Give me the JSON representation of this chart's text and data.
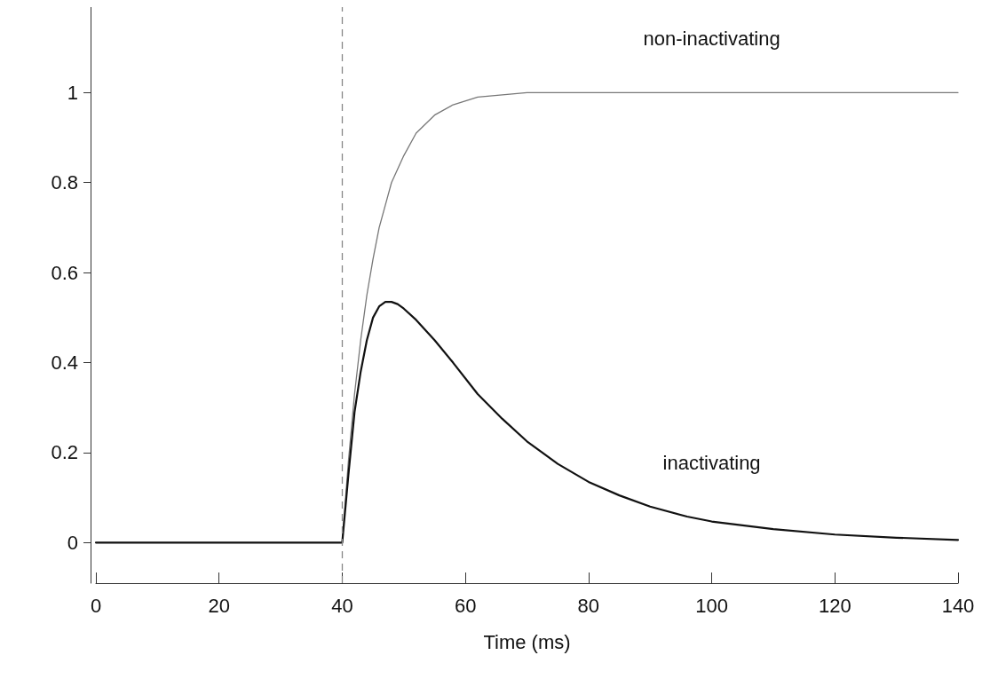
{
  "chart_data": {
    "type": "line",
    "xlabel": "Time (ms)",
    "xlim": [
      0,
      140
    ],
    "xticks": [
      0,
      20,
      40,
      60,
      80,
      100,
      120,
      140
    ],
    "ylim": [
      -0.09,
      1.19
    ],
    "yticks": [
      0,
      0.2,
      0.4,
      0.6,
      0.8,
      1
    ],
    "grid": false,
    "marker": "none",
    "series": [
      {
        "name": "non-inactivating",
        "color": "#777777",
        "x": [
          0,
          40,
          41,
          42,
          43,
          44,
          45,
          46,
          47,
          48,
          50,
          52,
          55,
          58,
          62,
          66,
          70,
          80,
          100,
          140
        ],
        "values": [
          0,
          0,
          0.18,
          0.33,
          0.45,
          0.55,
          0.63,
          0.7,
          0.75,
          0.8,
          0.86,
          0.91,
          0.95,
          0.973,
          0.99,
          0.995,
          1,
          1,
          1,
          1
        ]
      },
      {
        "name": "inactivating",
        "color": "#111111",
        "x": [
          0,
          40,
          41,
          42,
          43,
          44,
          45,
          46,
          47,
          48,
          49,
          50,
          52,
          55,
          58,
          62,
          66,
          70,
          75,
          80,
          85,
          90,
          96,
          100,
          110,
          120,
          130,
          140
        ],
        "values": [
          0,
          0,
          0.15,
          0.29,
          0.38,
          0.45,
          0.5,
          0.525,
          0.535,
          0.535,
          0.53,
          0.52,
          0.495,
          0.45,
          0.4,
          0.33,
          0.275,
          0.225,
          0.175,
          0.135,
          0.105,
          0.08,
          0.058,
          0.047,
          0.03,
          0.018,
          0.011,
          0.006
        ]
      }
    ],
    "ref_lines": [
      {
        "axis": "x",
        "value": 40,
        "color": "#888888",
        "line_style": "dashed"
      }
    ]
  }
}
